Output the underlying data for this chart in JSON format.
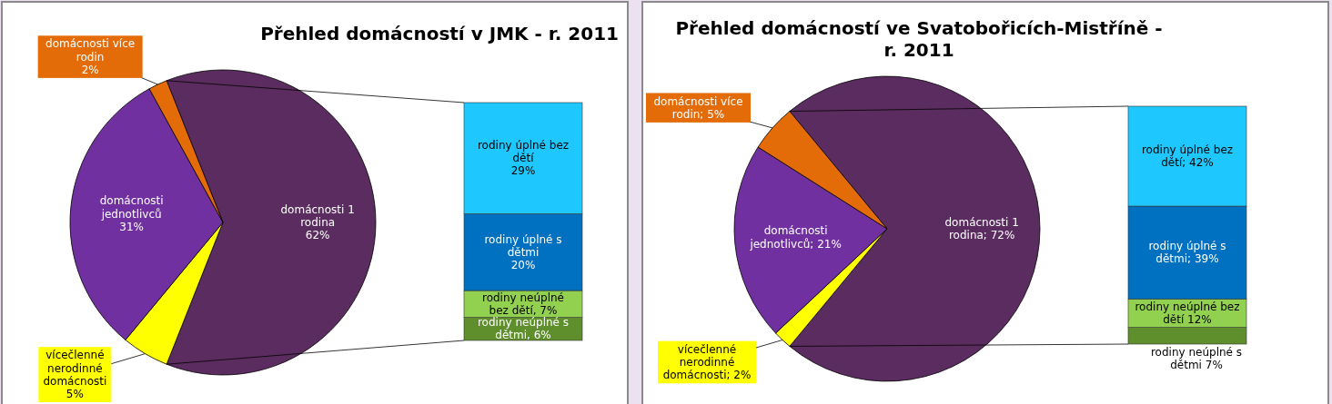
{
  "chart_data": [
    {
      "type": "pie",
      "title": "Přehled domácností v JMK - r. 2011",
      "categories": [
        "domácnosti 1 rodina",
        "vícečlenné nerodinné domácnosti",
        "domácnosti jednotlivců",
        "domácnosti více rodin"
      ],
      "values": [
        62,
        5,
        31,
        2
      ],
      "colors": [
        "#5b2c5f",
        "#ffff00",
        "#7030a0",
        "#e36c09"
      ],
      "value_labels": [
        "62%",
        "5%",
        "31%",
        "2%"
      ]
    },
    {
      "type": "bar",
      "stacked": true,
      "categories": [
        null
      ],
      "series": [
        {
          "color": "#5f8f2c",
          "values": [
            6
          ],
          "value_labels": [
            "rodiny neúplné s\ndětmi, 6%"
          ]
        },
        {
          "color": "#92d050",
          "values": [
            7
          ],
          "value_labels": [
            "rodiny neúplné\nbez dětí, 7%"
          ]
        },
        {
          "color": "#0070c0",
          "values": [
            20
          ],
          "value_labels": [
            "rodiny úplné s\ndětmi\n20%"
          ]
        },
        {
          "color": "#1ec8ff",
          "values": [
            29
          ],
          "value_labels": [
            "rodiny úplné bez\ndětí\n29%"
          ]
        }
      ]
    },
    {
      "type": "pie",
      "title": "Přehled domácností ve Svatobořicích-Mistříně -\nr. 2011",
      "categories": [
        "domácnosti 1 rodina",
        "vícečlenné nerodinné domácnosti",
        "domácnosti jednotlivců",
        "domácnosti více rodin"
      ],
      "values": [
        72,
        2,
        21,
        5
      ],
      "colors": [
        "#5b2c5f",
        "#ffff00",
        "#7030a0",
        "#e36c09"
      ],
      "value_labels": [
        "72%",
        "2%",
        "21%",
        "5%"
      ]
    },
    {
      "type": "bar",
      "stacked": true,
      "categories": [
        null
      ],
      "series": [
        {
          "color": "#5f8f2c",
          "values": [
            7
          ],
          "value_labels": [
            "rodiny neúplné s\ndětmi 7%"
          ]
        },
        {
          "color": "#92d050",
          "values": [
            12
          ],
          "value_labels": [
            "rodiny neúplné bez\ndětí 12%"
          ]
        },
        {
          "color": "#0070c0",
          "values": [
            39
          ],
          "value_labels": [
            "rodiny úplné s\ndětmi; 39%"
          ]
        },
        {
          "color": "#1ec8ff",
          "values": [
            42
          ],
          "value_labels": [
            "rodiny úplné bez\ndětí; 42%"
          ]
        }
      ]
    }
  ]
}
